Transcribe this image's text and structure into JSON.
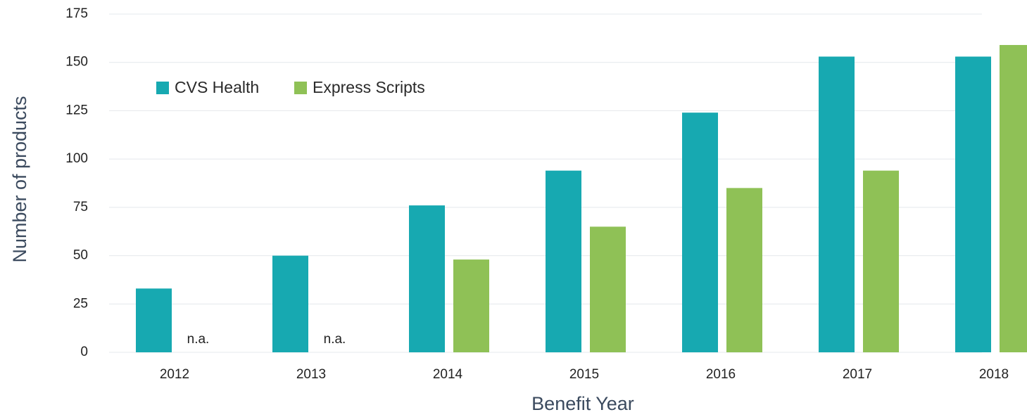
{
  "chart_data": {
    "type": "bar",
    "x_label": "Benefit Year",
    "y_label": "Number of products",
    "categories": [
      "2012",
      "2013",
      "2014",
      "2015",
      "2016",
      "2017",
      "2018"
    ],
    "series": [
      {
        "name": "CVS Health",
        "color": "#17a9b1",
        "values": [
          33,
          50,
          76,
          94,
          124,
          153,
          153
        ]
      },
      {
        "name": "Express Scripts",
        "color": "#8fc156",
        "values": [
          null,
          null,
          48,
          65,
          85,
          94,
          159
        ],
        "value_labels": [
          "n.a.",
          "n.a.",
          null,
          null,
          null,
          null,
          null
        ]
      }
    ],
    "ylim": [
      0,
      175
    ],
    "yticks": [
      0,
      25,
      50,
      75,
      100,
      125,
      150,
      175
    ],
    "grid": true,
    "legend": "top-left"
  }
}
